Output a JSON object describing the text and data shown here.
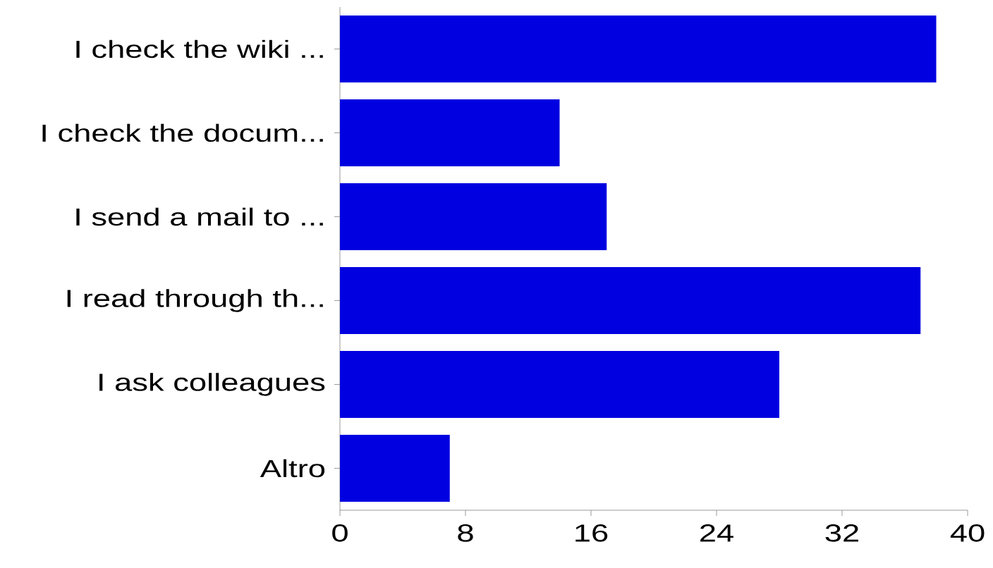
{
  "chart_data": {
    "type": "bar",
    "orientation": "horizontal",
    "categories": [
      "I check the wiki ...",
      "I check the docum...",
      "I send a mail to ...",
      "I read through th...",
      "I ask colleagues",
      "Altro"
    ],
    "values": [
      38,
      14,
      17,
      37,
      28,
      7
    ],
    "color": "#0000e0",
    "xlim": [
      0,
      40
    ],
    "xticks": [
      0,
      8,
      16,
      24,
      32,
      40
    ]
  }
}
